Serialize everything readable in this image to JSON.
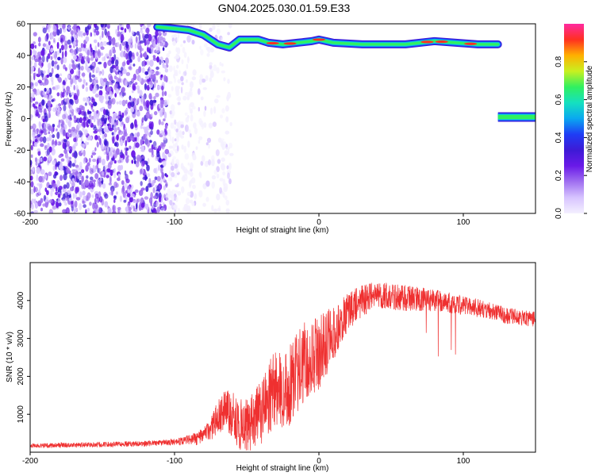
{
  "title": "GN04.2025.030.01.59.E33",
  "colors": {
    "snr_line": "#ef3030",
    "axis": "#000000",
    "colormap": [
      "#f4f0ff",
      "#d7c4ff",
      "#a070f0",
      "#6a1ae8",
      "#3e1ad6",
      "#1f3df5",
      "#0aa8f0",
      "#15e0c0",
      "#30f060",
      "#c8f020",
      "#ffb000",
      "#ff3020",
      "#ff2aa0"
    ]
  },
  "chart_data": [
    {
      "type": "heatmap",
      "title": "GN04.2025.030.01.59.E33",
      "xlabel": "Height of straight line (km)",
      "ylabel": "Frequency (Hz)",
      "xlim": [
        -200,
        150
      ],
      "ylim": [
        -60,
        60
      ],
      "xticks": [
        "-200",
        "-100",
        "0",
        "100"
      ],
      "yticks": [
        "60",
        "40",
        "20",
        "0",
        "-20",
        "-40",
        "-60"
      ],
      "colorbar": {
        "label": "Normalized spectral amplitude",
        "range": [
          0,
          1
        ],
        "ticks": [
          "0.0",
          "0.2",
          "0.4",
          "0.6",
          "0.8"
        ]
      },
      "features": {
        "noise_region_km": [
          -200,
          -60
        ],
        "dense_noise_km": [
          -200,
          -105
        ],
        "noise_gap_km": [
          -108,
          -88
        ],
        "tracked_signal": [
          {
            "x": -112,
            "y": 58
          },
          {
            "x": -100,
            "y": 57
          },
          {
            "x": -90,
            "y": 56
          },
          {
            "x": -80,
            "y": 53
          },
          {
            "x": -70,
            "y": 47
          },
          {
            "x": -62,
            "y": 45
          },
          {
            "x": -55,
            "y": 50
          },
          {
            "x": -48,
            "y": 50
          },
          {
            "x": -42,
            "y": 50
          },
          {
            "x": -35,
            "y": 48
          },
          {
            "x": -25,
            "y": 47
          },
          {
            "x": -15,
            "y": 48
          },
          {
            "x": -5,
            "y": 49
          },
          {
            "x": 0,
            "y": 50
          },
          {
            "x": 10,
            "y": 48
          },
          {
            "x": 30,
            "y": 47
          },
          {
            "x": 60,
            "y": 47
          },
          {
            "x": 80,
            "y": 49
          },
          {
            "x": 95,
            "y": 48
          },
          {
            "x": 110,
            "y": 47
          },
          {
            "x": 124,
            "y": 47
          }
        ],
        "secondary_signal": {
          "x_start": 124,
          "x_end": 150,
          "y": 1
        }
      }
    },
    {
      "type": "line",
      "xlabel": "Height of straight line (km)",
      "ylabel": "SNR (10 * v/v)",
      "xlim": [
        -200,
        150
      ],
      "ylim": [
        0,
        5000
      ],
      "xticks": [
        "-200",
        "-100",
        "0",
        "100"
      ],
      "yticks": [
        "1000",
        "2000",
        "3000",
        "4000"
      ],
      "trend": [
        {
          "x": -200,
          "y": 170
        },
        {
          "x": -150,
          "y": 200
        },
        {
          "x": -120,
          "y": 230
        },
        {
          "x": -100,
          "y": 270
        },
        {
          "x": -85,
          "y": 350
        },
        {
          "x": -75,
          "y": 600
        },
        {
          "x": -70,
          "y": 950
        },
        {
          "x": -65,
          "y": 1100
        },
        {
          "x": -60,
          "y": 1000
        },
        {
          "x": -55,
          "y": 700
        },
        {
          "x": -48,
          "y": 650
        },
        {
          "x": -40,
          "y": 1050
        },
        {
          "x": -32,
          "y": 1600
        },
        {
          "x": -25,
          "y": 1700
        },
        {
          "x": -20,
          "y": 1800
        },
        {
          "x": -10,
          "y": 2400
        },
        {
          "x": 0,
          "y": 2600
        },
        {
          "x": 10,
          "y": 3100
        },
        {
          "x": 20,
          "y": 3700
        },
        {
          "x": 30,
          "y": 4000
        },
        {
          "x": 40,
          "y": 4150
        },
        {
          "x": 50,
          "y": 4100
        },
        {
          "x": 70,
          "y": 4050
        },
        {
          "x": 90,
          "y": 3950
        },
        {
          "x": 110,
          "y": 3800
        },
        {
          "x": 130,
          "y": 3600
        },
        {
          "x": 150,
          "y": 3500
        }
      ],
      "noise_amplitude": [
        {
          "x": -200,
          "y": 60
        },
        {
          "x": -100,
          "y": 80
        },
        {
          "x": -80,
          "y": 200
        },
        {
          "x": -70,
          "y": 450
        },
        {
          "x": -55,
          "y": 700
        },
        {
          "x": -40,
          "y": 900
        },
        {
          "x": -20,
          "y": 1100
        },
        {
          "x": 0,
          "y": 1000
        },
        {
          "x": 20,
          "y": 500
        },
        {
          "x": 40,
          "y": 350
        },
        {
          "x": 60,
          "y": 350
        },
        {
          "x": 80,
          "y": 300
        },
        {
          "x": 100,
          "y": 250
        },
        {
          "x": 150,
          "y": 200
        }
      ]
    }
  ]
}
